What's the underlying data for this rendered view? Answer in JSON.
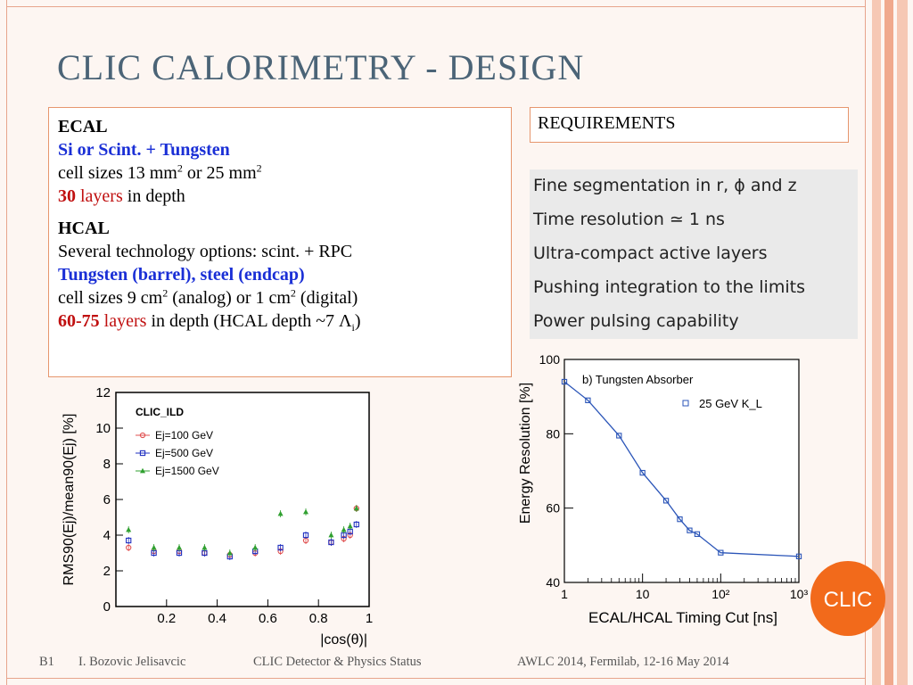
{
  "slide": {
    "title": "CLIC CALORIMETRY - DESIGN"
  },
  "left_box": {
    "ecal_heading": "ECAL",
    "ecal_materials": "Si or Scint.  + Tungsten",
    "ecal_cell_prefix": "cell sizes 13 mm",
    "ecal_cell_exp1": "2",
    "ecal_cell_mid": " or 25 mm",
    "ecal_cell_exp2": "2",
    "ecal_layers_num": "30",
    "ecal_layers_word": "layers",
    "ecal_layers_suffix": " in depth",
    "hcal_heading": "HCAL",
    "hcal_options": "Several technology options: scint. + RPC",
    "hcal_materials": "Tungsten (barrel), steel (endcap)",
    "hcal_cell_prefix": "cell sizes 9 cm",
    "hcal_cell_exp1": "2",
    "hcal_cell_mid": " (analog) or 1 cm",
    "hcal_cell_exp2": "2",
    "hcal_cell_suffix": " (digital)",
    "hcal_layers_num": "60-75",
    "hcal_layers_word": "layers",
    "hcal_layers_suffix": " in depth (HCAL depth ~7 Λ",
    "hcal_layers_sub": "i",
    "hcal_layers_close": ")"
  },
  "requirements": {
    "heading": "REQUIREMENTS",
    "items": [
      "Fine segmentation in r, ϕ and z",
      "Time resolution ≃ 1 ns",
      "Ultra-compact active layers",
      "Pushing integration to the limits",
      "Power pulsing capability"
    ]
  },
  "footer": {
    "slide_id": "B1",
    "author": "I. Bozovic Jelisavcic",
    "talk": "CLIC Detector & Physics Status",
    "event": "AWLC 2014, Fermilab, 12-16 May 2014"
  },
  "logo_text": "CLIC",
  "chart_data": [
    {
      "type": "scatter",
      "title": "CLIC_ILD",
      "xlabel": "|cos(θ)|",
      "ylabel": "RMS90(Ej)/mean90(Ej) [%]",
      "xlim": [
        0,
        1
      ],
      "ylim": [
        0,
        12
      ],
      "xticks": [
        "0.2",
        "0.4",
        "0.6",
        "0.8",
        "1"
      ],
      "yticks": [
        "0",
        "2",
        "4",
        "6",
        "8",
        "10",
        "12"
      ],
      "legend_position": "top-left",
      "series": [
        {
          "name": "Ej=100 GeV",
          "color": "#e05050",
          "marker": "circle",
          "x": [
            0.05,
            0.15,
            0.25,
            0.35,
            0.45,
            0.55,
            0.65,
            0.75,
            0.85,
            0.9,
            0.925,
            0.95
          ],
          "y": [
            3.3,
            3.1,
            3.1,
            3.0,
            2.9,
            3.0,
            3.1,
            3.7,
            3.6,
            3.8,
            4.0,
            5.5
          ]
        },
        {
          "name": "Ej=500 GeV",
          "color": "#2030c0",
          "marker": "square",
          "x": [
            0.05,
            0.15,
            0.25,
            0.35,
            0.45,
            0.55,
            0.65,
            0.75,
            0.85,
            0.9,
            0.925,
            0.95
          ],
          "y": [
            3.7,
            3.0,
            3.0,
            3.0,
            2.8,
            3.1,
            3.3,
            4.0,
            3.6,
            4.0,
            4.2,
            4.6
          ]
        },
        {
          "name": "Ej=1500 GeV",
          "color": "#30a030",
          "marker": "triangle",
          "x": [
            0.05,
            0.15,
            0.25,
            0.35,
            0.45,
            0.55,
            0.65,
            0.75,
            0.85,
            0.9,
            0.925,
            0.95
          ],
          "y": [
            4.3,
            3.3,
            3.3,
            3.3,
            3.0,
            3.3,
            5.2,
            5.3,
            4.0,
            4.3,
            4.5,
            5.5
          ]
        }
      ]
    },
    {
      "type": "line",
      "title": "b) Tungsten Absorber",
      "xlabel": "ECAL/HCAL Timing Cut [ns]",
      "ylabel": "Energy Resolution [%]",
      "xscale": "log",
      "xlim": [
        1,
        1000
      ],
      "ylim": [
        40,
        100
      ],
      "xticks": [
        "1",
        "10",
        "10²",
        "10³"
      ],
      "yticks": [
        "40",
        "60",
        "80",
        "100"
      ],
      "legend_position": "top-right",
      "series": [
        {
          "name": "25 GeV K_L",
          "color": "#2b55b8",
          "marker": "square",
          "x": [
            1,
            2,
            5,
            10,
            20,
            30,
            40,
            50,
            100,
            1000
          ],
          "y": [
            94,
            89,
            79.5,
            69.5,
            62,
            57,
            54,
            53,
            48,
            47
          ]
        }
      ]
    }
  ]
}
